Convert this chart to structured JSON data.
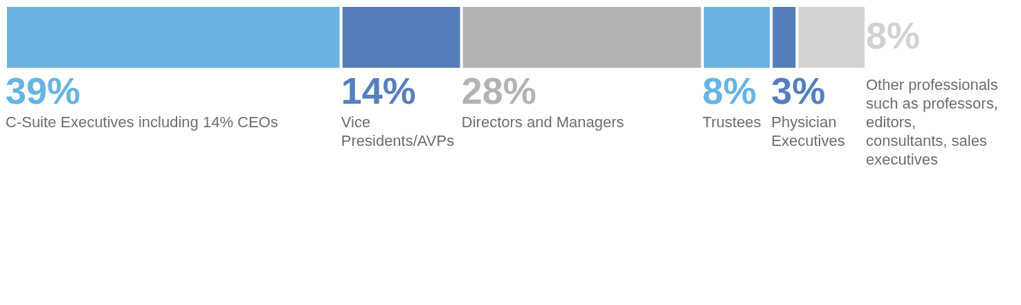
{
  "chart_data": {
    "type": "bar",
    "orientation": "horizontal",
    "stacked": true,
    "categories": [
      null
    ],
    "xlim": [
      0,
      100
    ],
    "tick_labels": false,
    "series": [
      {
        "name": "C-Suite Executives including 14% CEOs",
        "color": "#69b3e3",
        "values": [
          39
        ],
        "value_labels": [
          "39%"
        ]
      },
      {
        "name": "Vice Presidents/AVPs",
        "color": "#557fbc",
        "values": [
          14
        ],
        "value_labels": [
          "14%"
        ]
      },
      {
        "name": "Directors and Managers",
        "color": "#b2b3b3",
        "values": [
          28
        ],
        "value_labels": [
          "28%"
        ]
      },
      {
        "name": "Trustees",
        "color": "#69b3e3",
        "values": [
          8
        ],
        "value_labels": [
          "8%"
        ]
      },
      {
        "name": "Physician Executives",
        "color": "#557fbc",
        "values": [
          3
        ],
        "value_labels": [
          "3%"
        ]
      },
      {
        "name": "Other professionals such as professors, editors, consultants, sales executives",
        "color": "#d1d2d2",
        "values": [
          8
        ],
        "value_labels": [
          "8%"
        ]
      }
    ]
  }
}
